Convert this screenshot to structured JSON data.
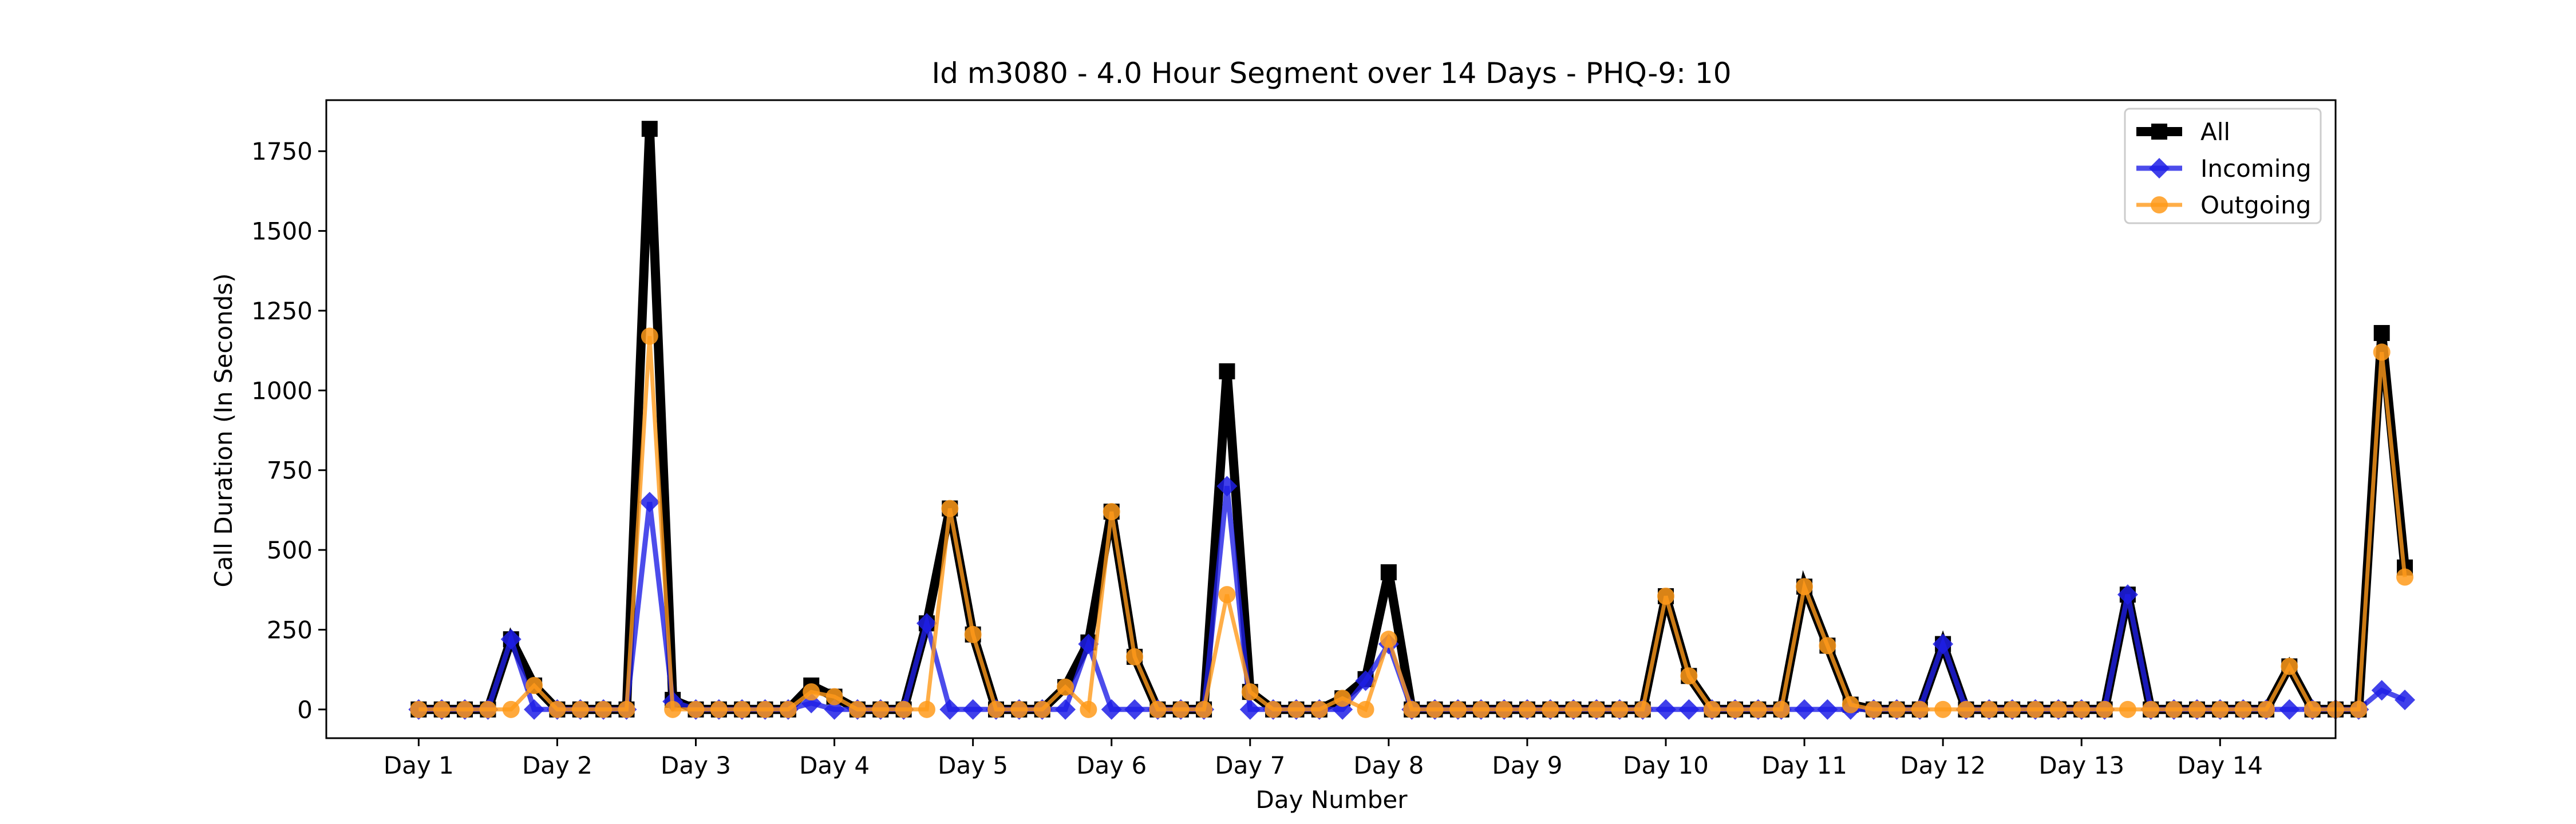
{
  "chart_data": {
    "type": "line",
    "title": "Id m3080 - 4.0 Hour Segment over 14 Days - PHQ-9: 10",
    "xlabel": "Day Number",
    "ylabel": "Call Duration (In Seconds)",
    "x_ticks": [
      "Day 1",
      "Day 2",
      "Day 3",
      "Day 4",
      "Day 5",
      "Day 6",
      "Day 7",
      "Day 8",
      "Day 9",
      "Day 10",
      "Day 11",
      "Day 12",
      "Day 13",
      "Day 14"
    ],
    "x_tick_index_start": 0,
    "segments_per_day": 6,
    "xlim": [
      -4,
      83
    ],
    "ylim": [
      -90,
      1910
    ],
    "y_ticks": [
      0,
      250,
      500,
      750,
      1000,
      1250,
      1500,
      1750
    ],
    "grid": false,
    "legend_position": "top-right",
    "series": [
      {
        "name": "All",
        "color": "#000000",
        "marker": "square",
        "values": [
          0,
          0,
          0,
          0,
          220,
          75,
          0,
          0,
          0,
          0,
          1820,
          30,
          0,
          0,
          0,
          0,
          0,
          75,
          40,
          0,
          0,
          0,
          270,
          630,
          235,
          0,
          0,
          0,
          70,
          210,
          620,
          165,
          0,
          0,
          0,
          1060,
          55,
          0,
          0,
          0,
          35,
          95,
          430,
          0,
          0,
          0,
          0,
          0,
          0,
          0,
          0,
          0,
          0,
          0,
          355,
          105,
          0,
          0,
          0,
          0,
          385,
          200,
          15,
          0,
          0,
          0,
          205,
          0,
          0,
          0,
          0,
          0,
          0,
          0,
          360,
          0,
          0,
          0,
          0,
          0,
          0,
          135,
          0,
          0,
          0,
          1180,
          445
        ]
      },
      {
        "name": "Incoming",
        "color": "#1f1fe6",
        "marker": "diamond",
        "values": [
          0,
          0,
          0,
          0,
          220,
          0,
          0,
          0,
          0,
          0,
          650,
          25,
          0,
          0,
          0,
          0,
          0,
          20,
          0,
          0,
          0,
          0,
          270,
          0,
          0,
          0,
          0,
          0,
          0,
          205,
          0,
          0,
          0,
          0,
          0,
          700,
          0,
          0,
          0,
          0,
          0,
          90,
          205,
          0,
          0,
          0,
          0,
          0,
          0,
          0,
          0,
          0,
          0,
          0,
          0,
          0,
          0,
          0,
          0,
          0,
          0,
          0,
          0,
          0,
          0,
          0,
          205,
          0,
          0,
          0,
          0,
          0,
          0,
          0,
          360,
          0,
          0,
          0,
          0,
          0,
          0,
          0,
          0,
          0,
          0,
          60,
          30
        ]
      },
      {
        "name": "Outgoing",
        "color": "#ff9a1a",
        "marker": "circle",
        "values": [
          0,
          0,
          0,
          0,
          0,
          75,
          0,
          0,
          0,
          0,
          1170,
          0,
          0,
          0,
          0,
          0,
          0,
          55,
          40,
          0,
          0,
          0,
          0,
          630,
          235,
          0,
          0,
          0,
          70,
          0,
          620,
          165,
          0,
          0,
          0,
          360,
          55,
          0,
          0,
          0,
          35,
          0,
          220,
          0,
          0,
          0,
          0,
          0,
          0,
          0,
          0,
          0,
          0,
          0,
          355,
          105,
          0,
          0,
          0,
          0,
          385,
          200,
          15,
          0,
          0,
          0,
          0,
          0,
          0,
          0,
          0,
          0,
          0,
          0,
          0,
          0,
          0,
          0,
          0,
          0,
          0,
          135,
          0,
          0,
          0,
          1120,
          415
        ]
      }
    ]
  }
}
